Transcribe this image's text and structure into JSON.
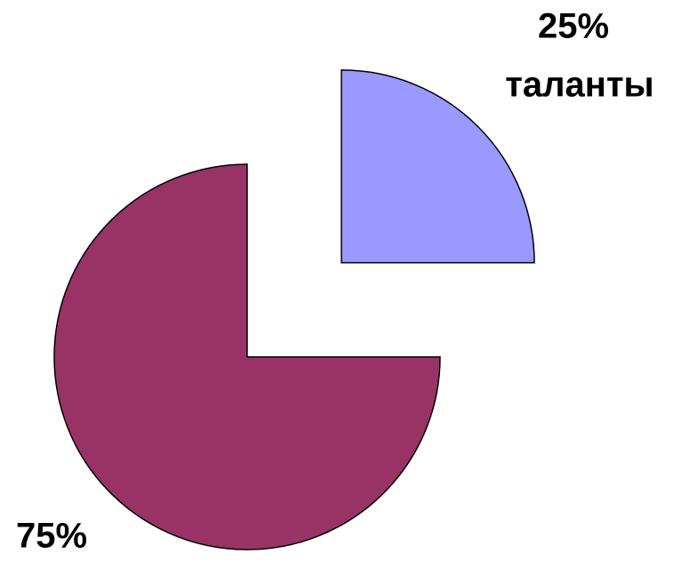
{
  "chart_data": {
    "type": "pie",
    "categories": [
      "таланты",
      null
    ],
    "values": [
      25,
      75
    ],
    "value_labels": [
      "25%",
      "75%"
    ],
    "colors": [
      "#9999ff",
      "#993366"
    ]
  }
}
